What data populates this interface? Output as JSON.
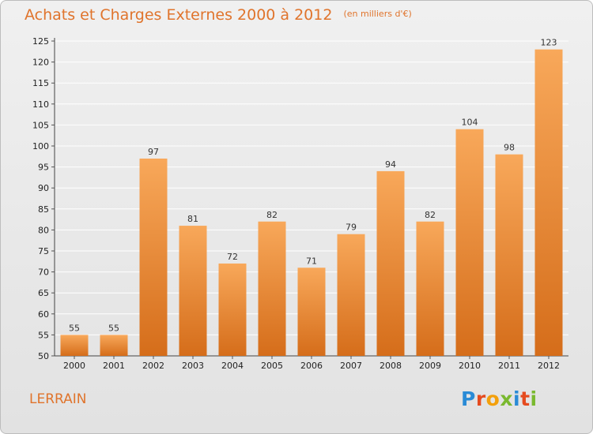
{
  "header": {
    "title": "Achats et Charges Externes 2000 à 2012",
    "unit": "(en milliers d'€)"
  },
  "footer": {
    "place": "LERRAIN",
    "brand": "Proxiti"
  },
  "colors": {
    "bar_light": "#f8a85a",
    "bar_dark": "#d56d1a",
    "text_accent": "#e0742c",
    "grid": "#ffffff",
    "brand_letters": [
      "#2a8bd6",
      "#e54b1f",
      "#f3a00c",
      "#7ab92f",
      "#2a8bd6",
      "#e54b1f",
      "#7ab92f"
    ]
  },
  "chart_data": {
    "type": "bar",
    "categories": [
      "2000",
      "2001",
      "2002",
      "2003",
      "2004",
      "2005",
      "2006",
      "2007",
      "2008",
      "2009",
      "2010",
      "2011",
      "2012"
    ],
    "values": [
      55,
      55,
      97,
      81,
      72,
      82,
      71,
      79,
      94,
      82,
      104,
      98,
      123
    ],
    "title": "Achats et Charges Externes 2000 à 2012",
    "xlabel": "",
    "ylabel": "",
    "ylim": [
      50,
      125
    ],
    "yticks": [
      50,
      55,
      60,
      65,
      70,
      75,
      80,
      85,
      90,
      95,
      100,
      105,
      110,
      115,
      120,
      125
    ],
    "grid": true,
    "data_labels": true
  }
}
